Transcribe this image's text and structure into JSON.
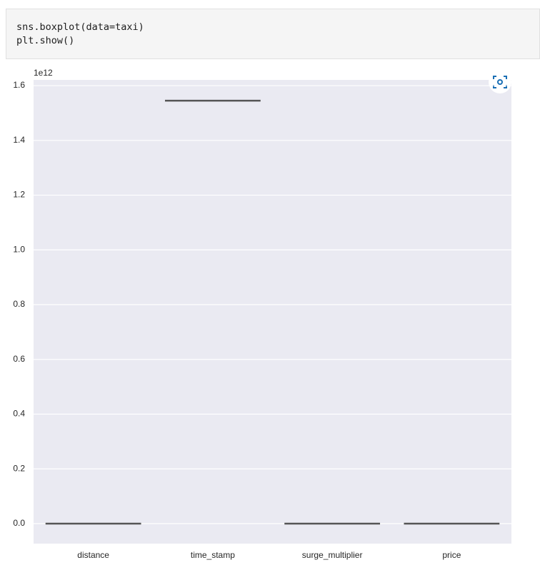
{
  "code": {
    "lines": [
      "sns.boxplot(data=taxi)",
      "plt.show()"
    ]
  },
  "chart_data": {
    "type": "box",
    "offset_label": "1e12",
    "categories": [
      "distance",
      "time_stamp",
      "surge_multiplier",
      "price"
    ],
    "boxes": [
      {
        "min": 0,
        "q1": 0,
        "median": 0,
        "q3": 0,
        "max": 0
      },
      {
        "min": 1.545,
        "q1": 1.545,
        "median": 1.545,
        "q3": 1.545,
        "max": 1.545
      },
      {
        "min": 0,
        "q1": 0,
        "median": 0,
        "q3": 0,
        "max": 0
      },
      {
        "min": 0,
        "q1": 0,
        "median": 0,
        "q3": 0,
        "max": 0
      }
    ],
    "color": "#555555",
    "ylim": [
      -0.073,
      1.621
    ],
    "yticks": [
      {
        "value": 0,
        "label": "0.0"
      },
      {
        "value": 0.2,
        "label": "0.2"
      },
      {
        "value": 0.4,
        "label": "0.4"
      },
      {
        "value": 0.6,
        "label": "0.6"
      },
      {
        "value": 0.8,
        "label": "0.8"
      },
      {
        "value": 1.0,
        "label": "1.0"
      },
      {
        "value": 1.2,
        "label": "1.2"
      },
      {
        "value": 1.4,
        "label": "1.4"
      },
      {
        "value": 1.6,
        "label": "1.6"
      }
    ],
    "grid": true
  }
}
